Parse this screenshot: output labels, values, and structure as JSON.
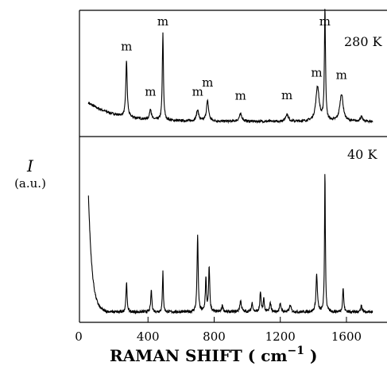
{
  "chart_data": {
    "type": "line",
    "xlabel": "RAMAN SHIFT ( cm",
    "xlabel_exp": "−1",
    "xlabel_close": " )",
    "ylabel": "I",
    "yunit": "(a.u.)",
    "xlim": [
      0,
      1850
    ],
    "x_ticks": [
      0,
      400,
      800,
      1200,
      1600
    ],
    "x_tick_labels": [
      "0",
      "400",
      "800",
      "1200",
      "1600"
    ],
    "grid": false,
    "series": [
      {
        "name": "280 K",
        "range": [
          40,
          1760
        ],
        "baseline_start": 0.34,
        "baseline_end": 0.15,
        "peaks": [
          {
            "x": 270,
            "h": 0.62,
            "w": 5
          },
          {
            "x": 415,
            "h": 0.12,
            "w": 6
          },
          {
            "x": 490,
            "h": 0.95,
            "w": 4
          },
          {
            "x": 700,
            "h": 0.12,
            "w": 8
          },
          {
            "x": 760,
            "h": 0.22,
            "w": 8
          },
          {
            "x": 960,
            "h": 0.08,
            "w": 10
          },
          {
            "x": 1240,
            "h": 0.08,
            "w": 10
          },
          {
            "x": 1425,
            "h": 0.38,
            "w": 12
          },
          {
            "x": 1470,
            "h": 1.22,
            "w": 4
          },
          {
            "x": 1570,
            "h": 0.3,
            "w": 12
          },
          {
            "x": 1690,
            "h": 0.05,
            "w": 8
          }
        ],
        "peak_labels": [
          {
            "x": 270,
            "text": "m"
          },
          {
            "x": 415,
            "text": "m"
          },
          {
            "x": 490,
            "text": "m"
          },
          {
            "x": 700,
            "text": "m"
          },
          {
            "x": 760,
            "text": "m"
          },
          {
            "x": 960,
            "text": "m"
          },
          {
            "x": 1240,
            "text": "m"
          },
          {
            "x": 1420,
            "text": "m"
          },
          {
            "x": 1470,
            "text": "m"
          },
          {
            "x": 1570,
            "text": "m"
          }
        ]
      },
      {
        "name": "40 K",
        "range": [
          40,
          1760
        ],
        "rayleigh_tail": true,
        "peaks": [
          {
            "x": 270,
            "h": 0.27,
            "w": 4
          },
          {
            "x": 420,
            "h": 0.2,
            "w": 4
          },
          {
            "x": 490,
            "h": 0.38,
            "w": 3
          },
          {
            "x": 700,
            "h": 0.7,
            "w": 4
          },
          {
            "x": 750,
            "h": 0.3,
            "w": 4
          },
          {
            "x": 770,
            "h": 0.4,
            "w": 4
          },
          {
            "x": 850,
            "h": 0.06,
            "w": 5
          },
          {
            "x": 960,
            "h": 0.1,
            "w": 6
          },
          {
            "x": 1030,
            "h": 0.08,
            "w": 5
          },
          {
            "x": 1080,
            "h": 0.18,
            "w": 4
          },
          {
            "x": 1100,
            "h": 0.12,
            "w": 4
          },
          {
            "x": 1140,
            "h": 0.08,
            "w": 5
          },
          {
            "x": 1200,
            "h": 0.07,
            "w": 6
          },
          {
            "x": 1260,
            "h": 0.06,
            "w": 6
          },
          {
            "x": 1420,
            "h": 0.34,
            "w": 5
          },
          {
            "x": 1470,
            "h": 1.28,
            "w": 3
          },
          {
            "x": 1580,
            "h": 0.22,
            "w": 4
          },
          {
            "x": 1690,
            "h": 0.06,
            "w": 5
          }
        ]
      }
    ]
  }
}
